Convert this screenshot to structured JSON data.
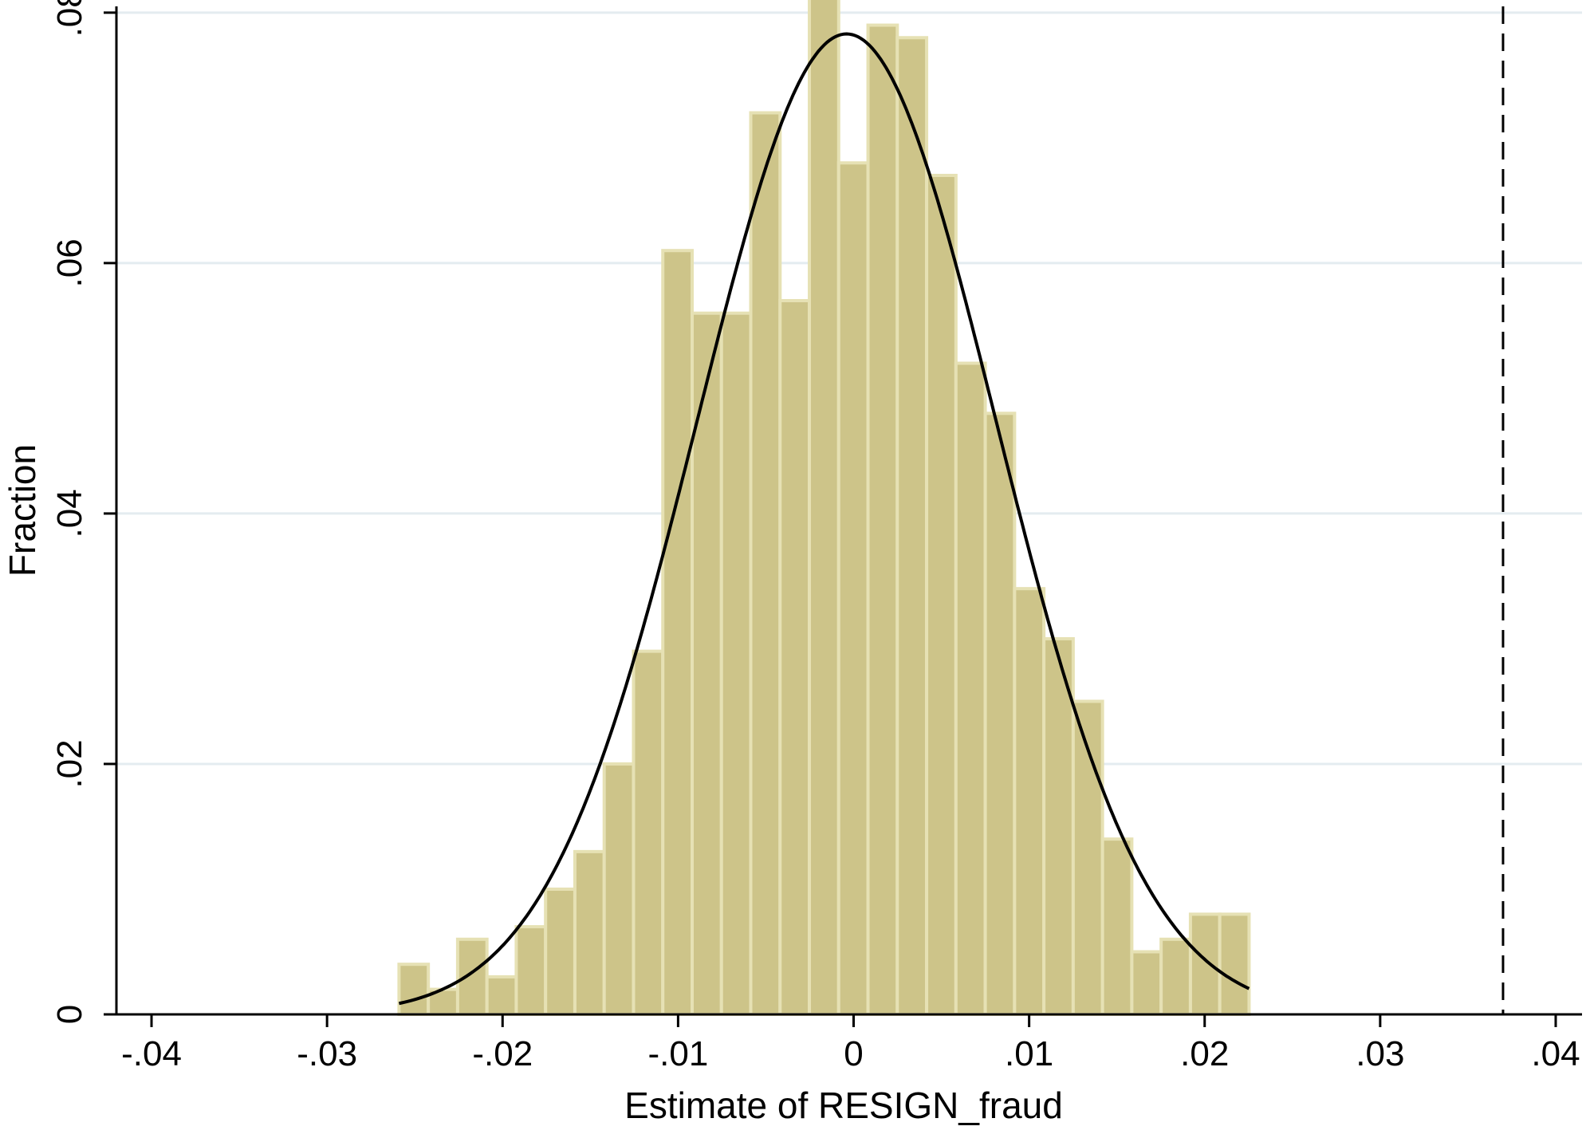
{
  "chart_data": {
    "type": "bar",
    "title": "",
    "xlabel": "Estimate of RESIGN_fraud",
    "ylabel": "Fraction",
    "xlim": [
      -0.042,
      0.0415
    ],
    "ylim": [
      0,
      0.0805
    ],
    "xticks": [
      -0.04,
      -0.03,
      -0.02,
      -0.01,
      0,
      0.01,
      0.02,
      0.03,
      0.04
    ],
    "xtick_labels": [
      "-.04",
      "-.03",
      "-.02",
      "-.01",
      "0",
      ".01",
      ".02",
      ".03",
      ".04"
    ],
    "yticks": [
      0,
      0.02,
      0.04,
      0.06,
      0.08
    ],
    "ytick_labels": [
      "0",
      ".02",
      ".04",
      ".06",
      ".08"
    ],
    "grid": true,
    "bins": {
      "start": -0.0259,
      "width": 0.00167,
      "values": [
        0.004,
        0.002,
        0.006,
        0.003,
        0.007,
        0.01,
        0.013,
        0.02,
        0.029,
        0.061,
        0.056,
        0.056,
        0.072,
        0.057,
        0.082,
        0.068,
        0.079,
        0.078,
        0.067,
        0.052,
        0.048,
        0.034,
        0.03,
        0.025,
        0.014,
        0.005,
        0.006,
        0.008,
        0.008
      ]
    },
    "normal_curve": {
      "mean": -0.0004,
      "sd": 0.0085,
      "peak": 0.0783
    },
    "reference_line": {
      "x": 0.037,
      "style": "dashed"
    },
    "colors": {
      "bar_fill": "#cdc489",
      "bar_edge": "#e6e1b4",
      "curve": "#000000",
      "grid": "#e4ecf0"
    }
  }
}
